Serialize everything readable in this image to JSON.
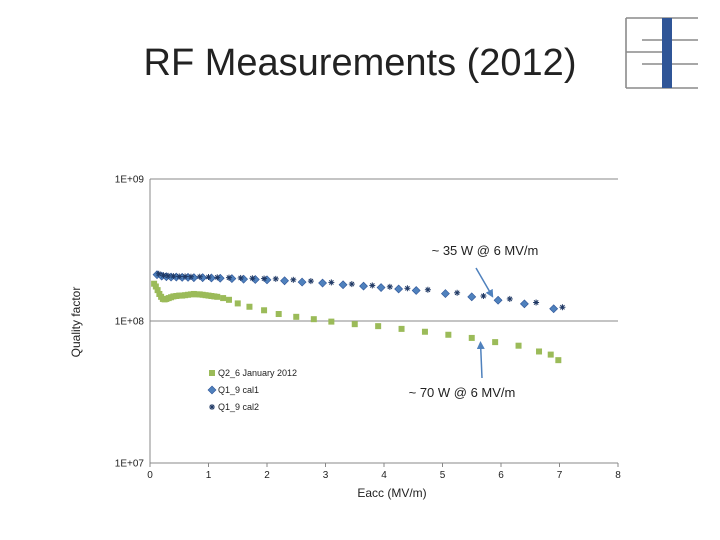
{
  "slide": {
    "title": "RF Measurements (2012)"
  },
  "logo": {
    "name": "institute-logo",
    "colors": {
      "bar": "#2f5597",
      "lines": "#8a8a8a"
    }
  },
  "chart_data": {
    "type": "scatter",
    "title": "",
    "xlabel": "Eacc (MV/m)",
    "ylabel": "Quality factor",
    "xlim": [
      0,
      8
    ],
    "ylim": [
      10000000,
      1000000000
    ],
    "yscale": "log",
    "x_ticks": [
      "0",
      "1",
      "2",
      "3",
      "4",
      "5",
      "6",
      "7",
      "8"
    ],
    "y_ticks": [
      "1E+07",
      "1E+08",
      "1E+09"
    ],
    "grid": "horizontal major",
    "legend_position": "lower-left",
    "series": [
      {
        "name": "Q2_6 January 2012",
        "marker": "square",
        "color": "#9bbb59",
        "x": [
          0.07,
          0.1,
          0.13,
          0.16,
          0.19,
          0.22,
          0.25,
          0.28,
          0.32,
          0.36,
          0.4,
          0.45,
          0.5,
          0.55,
          0.6,
          0.65,
          0.7,
          0.75,
          0.8,
          0.85,
          0.9,
          0.95,
          1.0,
          1.05,
          1.1,
          1.15,
          1.25,
          1.35,
          1.5,
          1.7,
          1.95,
          2.2,
          2.5,
          2.8,
          3.1,
          3.5,
          3.9,
          4.3,
          4.7,
          5.1,
          5.5,
          5.9,
          6.3,
          6.65,
          6.85,
          6.98
        ],
        "y": [
          183000000,
          175000000,
          165000000,
          155000000,
          148000000,
          143000000,
          142000000,
          143000000,
          145000000,
          147000000,
          149000000,
          150000000,
          151000000,
          151000000,
          152000000,
          153000000,
          154000000,
          155000000,
          154000000,
          154000000,
          153000000,
          152000000,
          151000000,
          150000000,
          149000000,
          148000000,
          145000000,
          141000000,
          133000000,
          126000000,
          119000000,
          112000000,
          107000000,
          103000000,
          99000000,
          95000000,
          92000000,
          88000000,
          84000000,
          80000000,
          76000000,
          71000000,
          67000000,
          61000000,
          58000000,
          53000000
        ]
      },
      {
        "name": "Q1_9 cal1",
        "marker": "diamond",
        "color": "#4f81bd",
        "x": [
          0.12,
          0.2,
          0.28,
          0.36,
          0.45,
          0.55,
          0.65,
          0.75,
          0.9,
          1.05,
          1.2,
          1.4,
          1.6,
          1.8,
          2.0,
          2.3,
          2.6,
          2.95,
          3.3,
          3.65,
          3.95,
          4.25,
          4.55,
          5.05,
          5.5,
          5.95,
          6.4,
          6.9
        ],
        "y": [
          212000000,
          207000000,
          205000000,
          204000000,
          204000000,
          203000000,
          203000000,
          202000000,
          202000000,
          201000000,
          200000000,
          199000000,
          197000000,
          196000000,
          195000000,
          192000000,
          188000000,
          185000000,
          180000000,
          176000000,
          172000000,
          168000000,
          164000000,
          156000000,
          148000000,
          140000000,
          132000000,
          122000000
        ]
      },
      {
        "name": "Q1_9 cal2",
        "marker": "star",
        "color": "#1f3864",
        "x": [
          0.15,
          0.23,
          0.31,
          0.4,
          0.5,
          0.6,
          0.7,
          0.85,
          1.0,
          1.15,
          1.35,
          1.55,
          1.75,
          1.95,
          2.15,
          2.45,
          2.75,
          3.1,
          3.45,
          3.8,
          4.1,
          4.4,
          4.75,
          5.25,
          5.7,
          6.15,
          6.6,
          7.05
        ],
        "y": [
          215000000,
          210000000,
          208000000,
          207000000,
          206000000,
          206000000,
          205000000,
          205000000,
          204000000,
          203000000,
          202000000,
          201000000,
          200000000,
          199000000,
          198000000,
          195000000,
          191000000,
          187000000,
          182000000,
          178000000,
          174000000,
          170000000,
          166000000,
          158000000,
          150000000,
          143000000,
          135000000,
          125000000
        ]
      }
    ],
    "annotations": [
      {
        "text": "~ 35 W @ 6 MV/m",
        "arrow_to": [
          5.85,
          150000000
        ]
      },
      {
        "text": "~ 70 W @ 6 MV/m",
        "arrow_to": [
          5.65,
          70000000
        ]
      }
    ]
  }
}
